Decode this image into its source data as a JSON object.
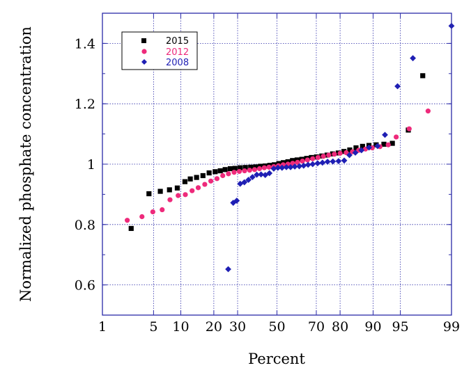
{
  "chart_data": {
    "type": "scatter",
    "title": "",
    "xlabel": "Percent",
    "ylabel": "Normalized phosphate concentration",
    "x_scale": "normal-probability",
    "xlim": [
      1,
      99
    ],
    "ylim": [
      0.5,
      1.5
    ],
    "x_ticks": [
      1,
      5,
      10,
      20,
      30,
      50,
      70,
      80,
      90,
      95,
      99
    ],
    "x_tick_labels": [
      "1",
      "5",
      "10",
      "20",
      "30",
      "50",
      "70",
      "80",
      "90",
      "95",
      "99"
    ],
    "y_ticks": [
      0.6,
      0.8,
      1.0,
      1.2,
      1.4
    ],
    "y_tick_labels": [
      "0.6",
      "0.8",
      "1",
      "1.2",
      "1.4"
    ],
    "grid": true,
    "legend_position": "top-left",
    "series": [
      {
        "name": "2015",
        "marker": "square",
        "color": "#000000",
        "points": [
          [
            2.6,
            0.787
          ],
          [
            4.4,
            0.902
          ],
          [
            6.0,
            0.91
          ],
          [
            7.6,
            0.915
          ],
          [
            9.2,
            0.921
          ],
          [
            11.0,
            0.942
          ],
          [
            12.4,
            0.951
          ],
          [
            14.2,
            0.956
          ],
          [
            16.2,
            0.962
          ],
          [
            18.3,
            0.971
          ],
          [
            20.5,
            0.975
          ],
          [
            22.5,
            0.978
          ],
          [
            24.5,
            0.982
          ],
          [
            26.7,
            0.985
          ],
          [
            28.8,
            0.986
          ],
          [
            31.2,
            0.988
          ],
          [
            33.7,
            0.989
          ],
          [
            36.3,
            0.99
          ],
          [
            38.8,
            0.991
          ],
          [
            41.3,
            0.993
          ],
          [
            43.8,
            0.994
          ],
          [
            46.2,
            0.996
          ],
          [
            48.6,
            0.998
          ],
          [
            51.0,
            1.002
          ],
          [
            53.4,
            1.005
          ],
          [
            55.8,
            1.008
          ],
          [
            58.2,
            1.012
          ],
          [
            60.6,
            1.014
          ],
          [
            63.0,
            1.016
          ],
          [
            65.4,
            1.019
          ],
          [
            67.7,
            1.022
          ],
          [
            70.1,
            1.024
          ],
          [
            72.5,
            1.027
          ],
          [
            74.8,
            1.03
          ],
          [
            77.1,
            1.034
          ],
          [
            79.3,
            1.037
          ],
          [
            81.4,
            1.042
          ],
          [
            83.4,
            1.047
          ],
          [
            85.4,
            1.054
          ],
          [
            87.3,
            1.059
          ],
          [
            89.0,
            1.062
          ],
          [
            90.7,
            1.064
          ],
          [
            92.3,
            1.066
          ],
          [
            93.8,
            1.069
          ],
          [
            96.0,
            1.113
          ],
          [
            97.4,
            1.293
          ]
        ]
      },
      {
        "name": "2012",
        "marker": "circle",
        "color": "#ee2a7b",
        "points": [
          [
            2.3,
            0.814
          ],
          [
            3.6,
            0.826
          ],
          [
            4.9,
            0.842
          ],
          [
            6.3,
            0.849
          ],
          [
            7.7,
            0.882
          ],
          [
            9.4,
            0.896
          ],
          [
            11.1,
            0.899
          ],
          [
            12.9,
            0.912
          ],
          [
            14.7,
            0.922
          ],
          [
            16.8,
            0.933
          ],
          [
            18.9,
            0.944
          ],
          [
            21.2,
            0.952
          ],
          [
            23.5,
            0.962
          ],
          [
            25.9,
            0.968
          ],
          [
            28.4,
            0.973
          ],
          [
            30.8,
            0.976
          ],
          [
            33.3,
            0.978
          ],
          [
            35.8,
            0.98
          ],
          [
            38.3,
            0.982
          ],
          [
            40.8,
            0.985
          ],
          [
            43.3,
            0.988
          ],
          [
            45.8,
            0.99
          ],
          [
            48.3,
            0.992
          ],
          [
            50.8,
            0.995
          ],
          [
            53.3,
            0.998
          ],
          [
            55.8,
            1.0
          ],
          [
            58.3,
            1.003
          ],
          [
            60.8,
            1.006
          ],
          [
            63.3,
            1.01
          ],
          [
            65.8,
            1.014
          ],
          [
            68.3,
            1.018
          ],
          [
            70.8,
            1.022
          ],
          [
            73.2,
            1.026
          ],
          [
            75.5,
            1.03
          ],
          [
            77.8,
            1.033
          ],
          [
            80.0,
            1.036
          ],
          [
            82.2,
            1.038
          ],
          [
            84.3,
            1.041
          ],
          [
            86.2,
            1.046
          ],
          [
            88.1,
            1.05
          ],
          [
            89.8,
            1.054
          ],
          [
            91.5,
            1.058
          ],
          [
            93.1,
            1.064
          ],
          [
            94.4,
            1.09
          ],
          [
            96.1,
            1.117
          ],
          [
            97.8,
            1.176
          ]
        ]
      },
      {
        "name": "2008",
        "marker": "diamond",
        "color": "#1f1fb4",
        "points": [
          [
            25.8,
            0.652
          ],
          [
            28.0,
            0.872
          ],
          [
            29.6,
            0.879
          ],
          [
            31.2,
            0.935
          ],
          [
            33.2,
            0.94
          ],
          [
            35.2,
            0.948
          ],
          [
            37.2,
            0.957
          ],
          [
            39.4,
            0.965
          ],
          [
            41.6,
            0.966
          ],
          [
            43.8,
            0.964
          ],
          [
            46.0,
            0.97
          ],
          [
            48.3,
            0.985
          ],
          [
            50.5,
            0.988
          ],
          [
            52.7,
            0.988
          ],
          [
            55.0,
            0.99
          ],
          [
            57.2,
            0.99
          ],
          [
            59.4,
            0.992
          ],
          [
            61.7,
            0.993
          ],
          [
            63.9,
            0.995
          ],
          [
            66.1,
            0.998
          ],
          [
            68.3,
            1.0
          ],
          [
            70.6,
            1.003
          ],
          [
            72.8,
            1.005
          ],
          [
            75.0,
            1.008
          ],
          [
            77.2,
            1.009
          ],
          [
            79.4,
            1.01
          ],
          [
            81.5,
            1.012
          ],
          [
            83.3,
            1.03
          ],
          [
            85.2,
            1.038
          ],
          [
            87.0,
            1.046
          ],
          [
            89.0,
            1.055
          ],
          [
            91.0,
            1.06
          ],
          [
            92.5,
            1.097
          ],
          [
            94.6,
            1.258
          ],
          [
            96.5,
            1.351
          ],
          [
            99.0,
            1.458
          ]
        ]
      }
    ]
  }
}
